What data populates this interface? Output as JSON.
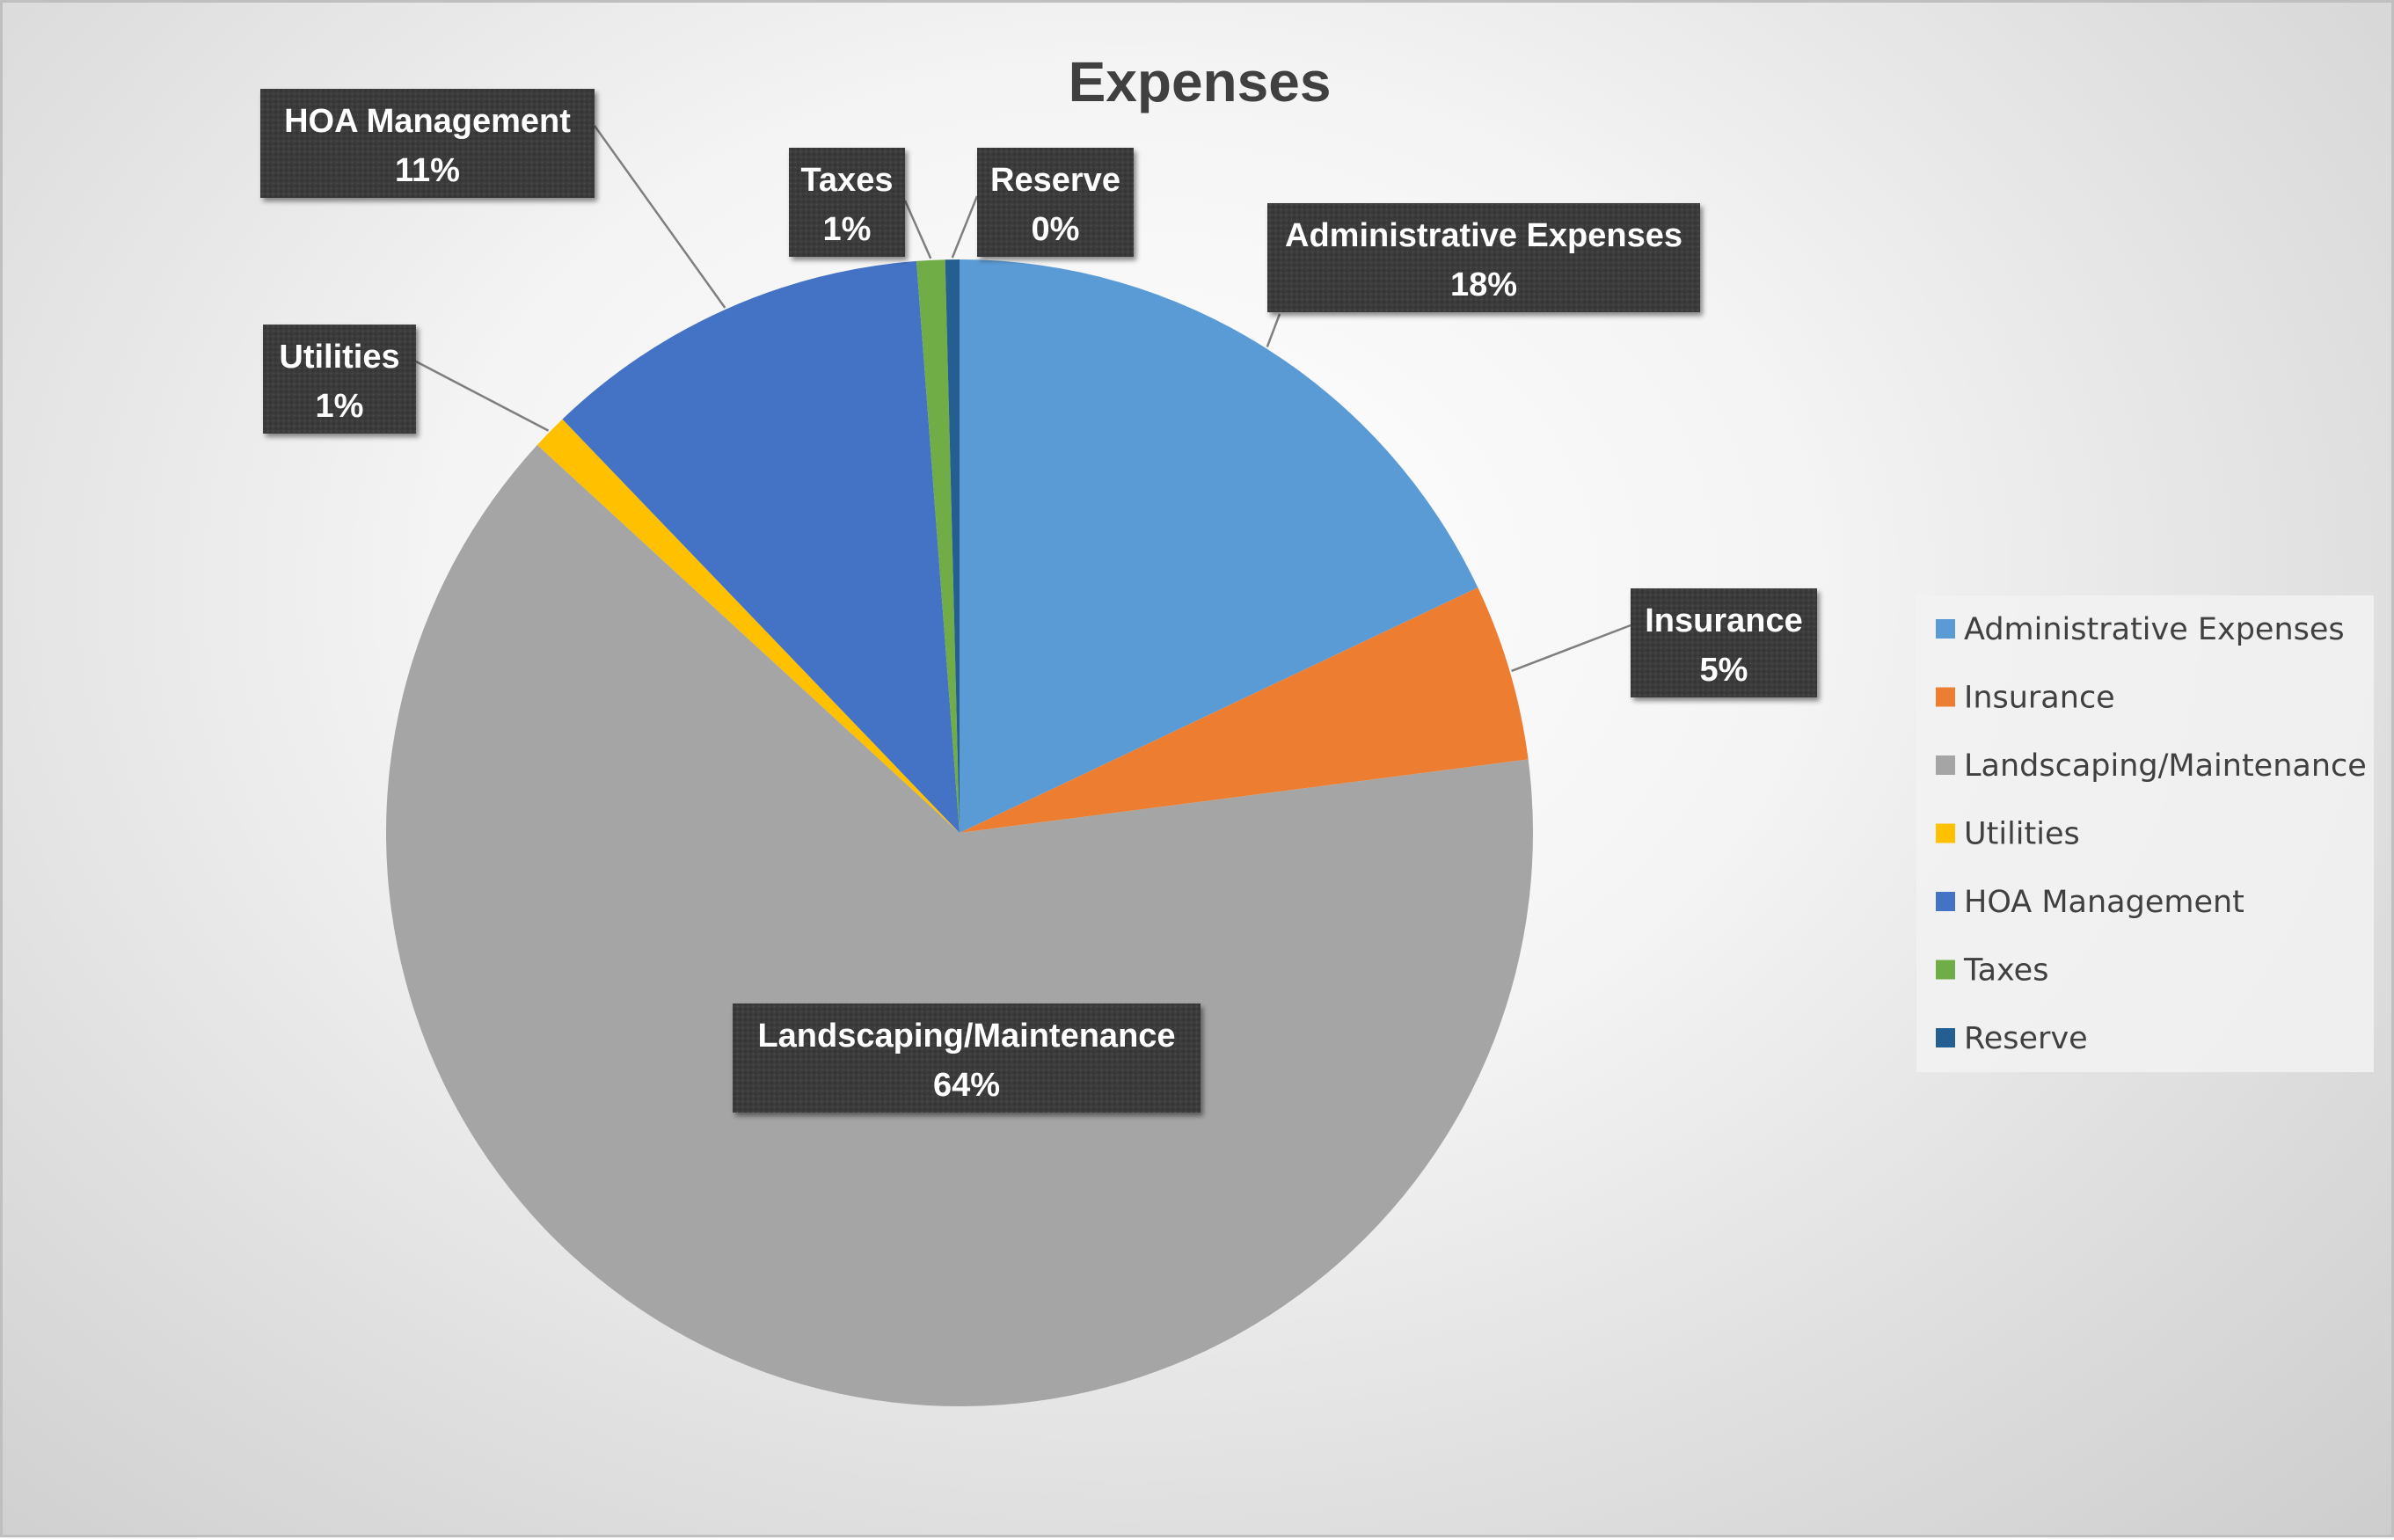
{
  "chart_data": {
    "type": "pie",
    "title": "Expenses",
    "legend_position": "right",
    "slices": [
      {
        "name": "Administrative Expenses",
        "value": 18,
        "label": "18%",
        "color": "#5B9BD5"
      },
      {
        "name": "Insurance",
        "value": 5,
        "label": "5%",
        "color": "#ED7D31"
      },
      {
        "name": "Landscaping/Maintenance",
        "value": 64,
        "label": "64%",
        "color": "#A5A5A5"
      },
      {
        "name": "Utilities",
        "value": 1,
        "label": "1%",
        "color": "#FFC000"
      },
      {
        "name": "HOA Management",
        "value": 11,
        "label": "11%",
        "color": "#4472C4"
      },
      {
        "name": "Taxes",
        "value": 0.8,
        "label": "1%",
        "color": "#70AD47"
      },
      {
        "name": "Reserve",
        "value": 0.4,
        "label": "0%",
        "color": "#255E91"
      }
    ]
  }
}
